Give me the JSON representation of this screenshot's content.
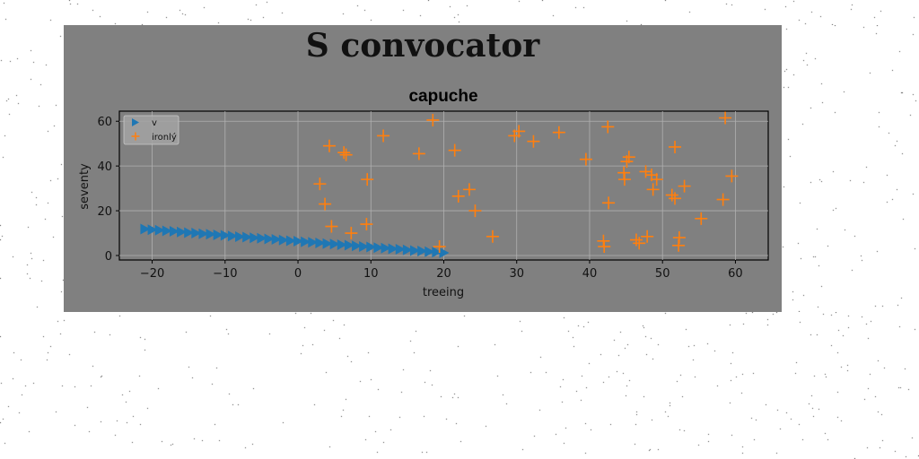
{
  "figure": {
    "suptitle": "S convocator"
  },
  "chart_data": {
    "type": "scatter",
    "title": "capuche",
    "xlabel": "treeing",
    "ylabel": "seventy",
    "xlim": [
      -24.5,
      64.5
    ],
    "ylim": [
      -2,
      64.5
    ],
    "xticks": [
      -20,
      -10,
      0,
      10,
      20,
      30,
      40,
      50,
      60
    ],
    "yticks": [
      0,
      20,
      40,
      60
    ],
    "grid": true,
    "legend_position": "upper left",
    "series": [
      {
        "name": "v",
        "marker": "triangle-right",
        "color": "#1f77b4",
        "x": [
          -21,
          -20,
          -19,
          -18,
          -17,
          -16,
          -15,
          -14,
          -13,
          -12,
          -11,
          -10,
          -9,
          -8,
          -7,
          -6,
          -5,
          -4,
          -3,
          -2,
          -1,
          0,
          1,
          2,
          3,
          4,
          5,
          6,
          7,
          8,
          9,
          10,
          11,
          12,
          13,
          14,
          15,
          16,
          17,
          18,
          19,
          20
        ],
        "y": [
          11.8,
          11.5,
          11.3,
          11.0,
          10.8,
          10.5,
          10.2,
          10.0,
          9.7,
          9.5,
          9.2,
          9.0,
          8.7,
          8.4,
          8.2,
          7.9,
          7.7,
          7.4,
          7.2,
          6.9,
          6.6,
          6.4,
          6.1,
          5.9,
          5.6,
          5.3,
          5.1,
          4.8,
          4.6,
          4.3,
          4.0,
          3.8,
          3.5,
          3.3,
          3.0,
          2.8,
          2.5,
          2.2,
          2.0,
          1.7,
          1.5,
          1.2
        ]
      },
      {
        "name": "ironlý",
        "marker": "plus",
        "color": "#ff7f0e",
        "x": [
          18.5,
          4.3,
          6.3,
          6.6,
          11.7,
          16.6,
          21.5,
          3,
          3.7,
          9.5,
          4.6,
          9.4,
          7.3,
          22,
          23.5,
          24.3,
          19.4,
          26.7,
          29.7,
          30.3,
          32.3,
          35.8,
          39.5,
          42.5,
          42.6,
          41.9,
          42,
          44.7,
          45.1,
          45.4,
          44.8,
          47.7,
          48.5,
          48.7,
          46.4,
          46.8,
          47.9,
          49.2,
          51.7,
          51.3,
          51.7,
          53,
          52.3,
          52.2,
          55.3,
          58.6,
          59.5,
          58.3
        ],
        "y": [
          60.5,
          49,
          46,
          45,
          53.5,
          45.5,
          47,
          32,
          23,
          34,
          13,
          14,
          10,
          26.5,
          29.5,
          20,
          4,
          8.5,
          53.5,
          55.5,
          51,
          55,
          43,
          57.5,
          23.5,
          6.5,
          4,
          37,
          42,
          44,
          34,
          37.5,
          36,
          29.5,
          7,
          5.5,
          8.5,
          34,
          48.5,
          27,
          25.5,
          31,
          8,
          4.5,
          16.5,
          61.5,
          35.5,
          25
        ]
      }
    ]
  }
}
